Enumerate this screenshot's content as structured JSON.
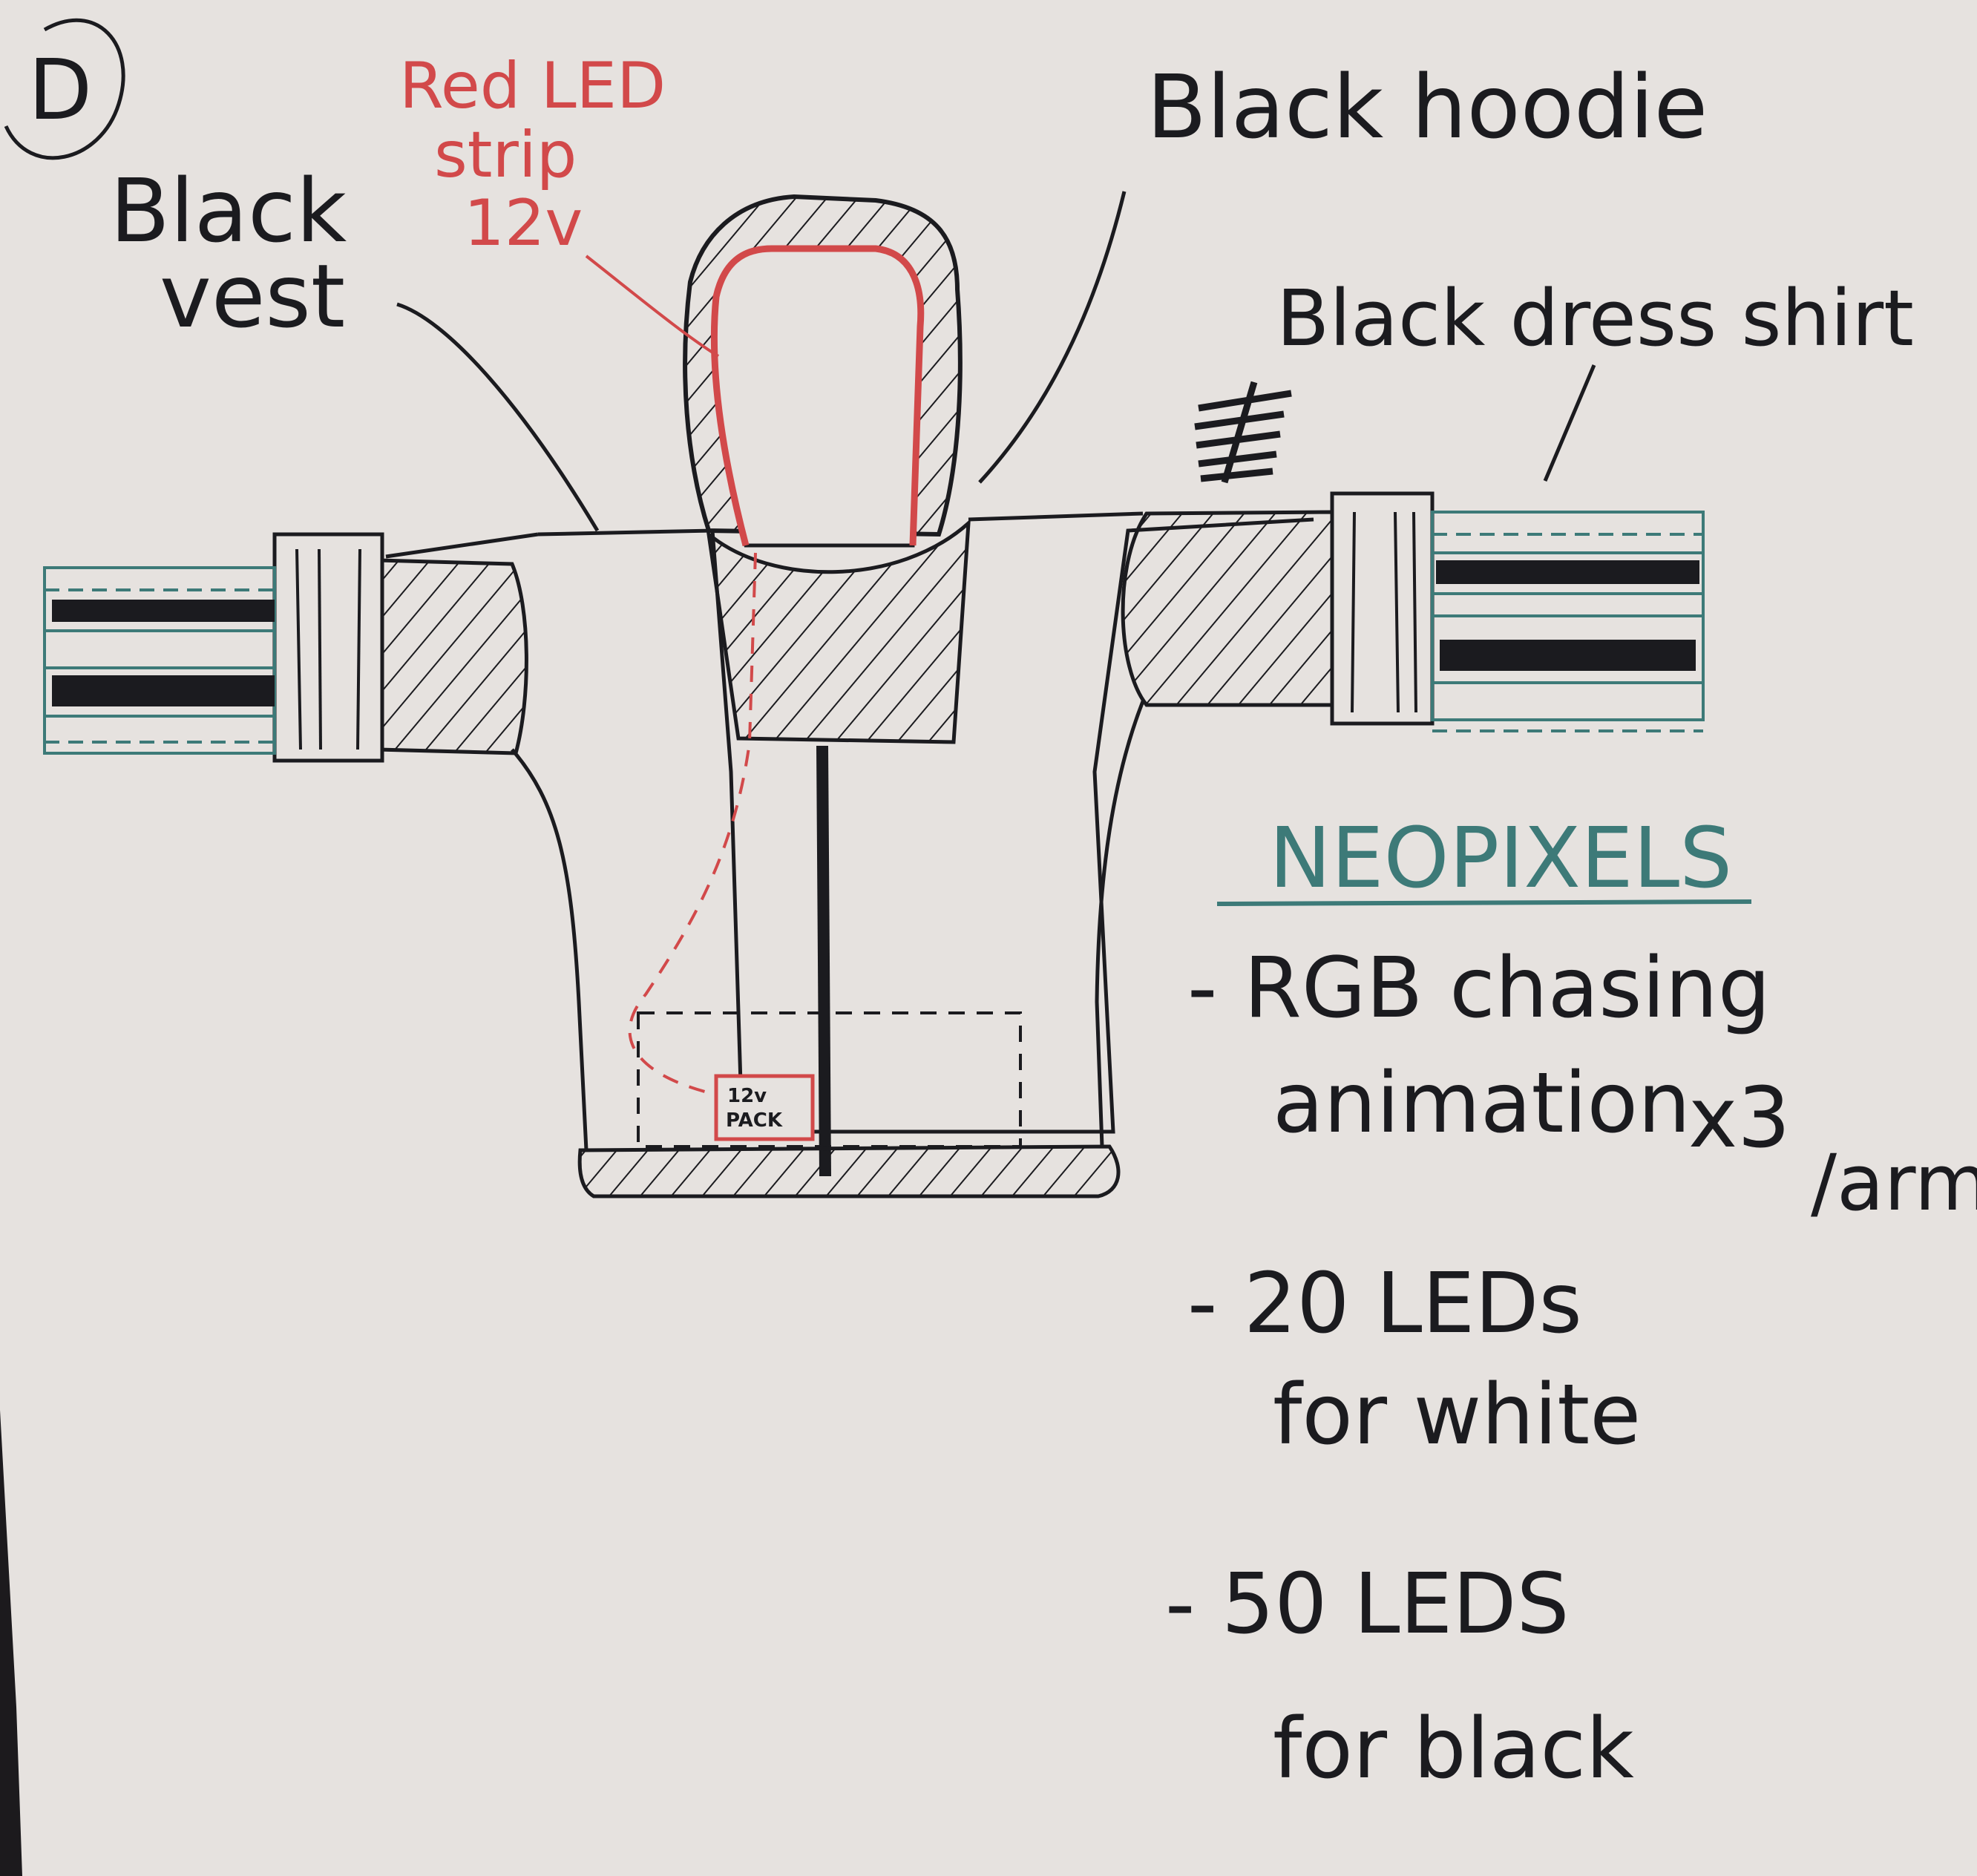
{
  "page": {
    "corner_mark": "D"
  },
  "labels": {
    "vest": [
      "Black",
      "vest"
    ],
    "led_strip": [
      "Red LED",
      "strip",
      "12v"
    ],
    "hoodie": "Black hoodie",
    "shirt": "Black dress shirt",
    "battery": [
      "12v",
      "PACK"
    ]
  },
  "notes": {
    "heading": "NEOPIXELS",
    "items": [
      {
        "lines": [
          "- RGB chasing",
          "animation"
        ],
        "suffix": "x3",
        "suffix_unit": "/arm"
      },
      {
        "lines": [
          "- 20 LEDs",
          "for white"
        ]
      },
      {
        "lines": [
          "- 50 LEDS",
          "for black"
        ]
      }
    ]
  },
  "colors": {
    "paper": "#e6e2df",
    "ink": "#1b1b1f",
    "red_ink": "#d2494a",
    "teal_ink": "#3d7a78",
    "background": "#1c1a1d"
  }
}
